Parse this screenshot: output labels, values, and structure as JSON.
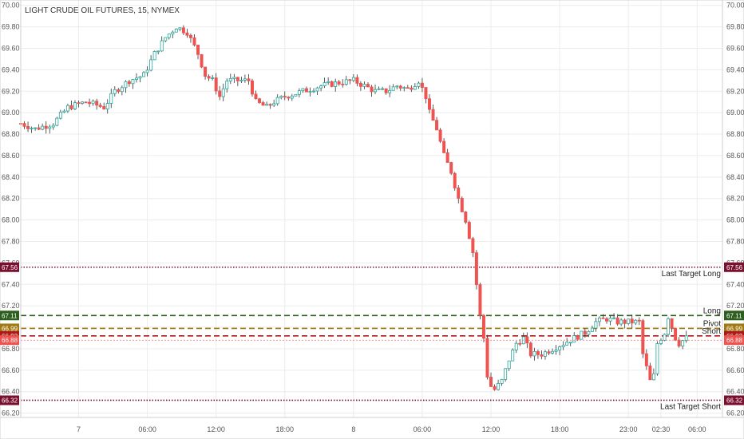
{
  "chart_data": {
    "type": "candlestick",
    "title": "LIGHT CRUDE OIL FUTURES, 15, NYMEX",
    "ylim": [
      66.16,
      70.02
    ],
    "y_ticks": [
      "66.20",
      "66.40",
      "66.60",
      "66.80",
      "67.00",
      "67.20",
      "67.40",
      "67.60",
      "67.80",
      "68.00",
      "68.20",
      "68.40",
      "68.60",
      "68.80",
      "69.00",
      "69.20",
      "69.40",
      "69.60",
      "69.80",
      "70.00"
    ],
    "x_range": [
      0,
      194
    ],
    "x_ticks": [
      {
        "x": 16,
        "label": "7"
      },
      {
        "x": 35,
        "label": "06:00"
      },
      {
        "x": 54,
        "label": "12:00"
      },
      {
        "x": 73,
        "label": "18:00"
      },
      {
        "x": 92,
        "label": "8"
      },
      {
        "x": 111,
        "label": "06:00"
      },
      {
        "x": 130,
        "label": "12:00"
      },
      {
        "x": 149,
        "label": "18:00"
      },
      {
        "x": 168,
        "label": "23:00"
      },
      {
        "x": 177,
        "label": "02:30"
      },
      {
        "x": 187,
        "label": "06:00"
      }
    ],
    "grid": true,
    "up_color": "#26a69a",
    "down_color": "#ef5350",
    "close_path": [
      [
        0,
        68.9
      ],
      [
        4,
        68.85
      ],
      [
        9,
        68.9
      ],
      [
        13,
        69.05
      ],
      [
        18,
        69.1
      ],
      [
        23,
        69.05
      ],
      [
        26,
        69.2
      ],
      [
        30,
        69.3
      ],
      [
        34,
        69.35
      ],
      [
        37,
        69.55
      ],
      [
        40,
        69.7
      ],
      [
        43,
        69.8
      ],
      [
        46,
        69.75
      ],
      [
        49,
        69.55
      ],
      [
        51,
        69.35
      ],
      [
        53,
        69.3
      ],
      [
        55,
        69.15
      ],
      [
        57,
        69.3
      ],
      [
        60,
        69.3
      ],
      [
        63,
        69.3
      ],
      [
        65,
        69.1
      ],
      [
        68,
        69.05
      ],
      [
        70,
        69.1
      ],
      [
        73,
        69.15
      ],
      [
        78,
        69.2
      ],
      [
        83,
        69.25
      ],
      [
        88,
        69.28
      ],
      [
        92,
        69.3
      ],
      [
        95,
        69.25
      ],
      [
        98,
        69.2
      ],
      [
        101,
        69.2
      ],
      [
        104,
        69.25
      ],
      [
        107,
        69.22
      ],
      [
        110,
        69.3
      ],
      [
        112,
        69.15
      ],
      [
        113,
        69.0
      ],
      [
        115,
        68.85
      ],
      [
        117,
        68.6
      ],
      [
        119,
        68.45
      ],
      [
        121,
        68.2
      ],
      [
        123,
        68.0
      ],
      [
        125,
        67.7
      ],
      [
        126,
        67.4
      ],
      [
        127,
        67.1
      ],
      [
        128,
        66.9
      ],
      [
        129,
        66.55
      ],
      [
        130,
        66.45
      ],
      [
        131,
        66.42
      ],
      [
        133,
        66.5
      ],
      [
        135,
        66.7
      ],
      [
        137,
        66.85
      ],
      [
        139,
        66.9
      ],
      [
        141,
        66.75
      ],
      [
        144,
        66.75
      ],
      [
        147,
        66.8
      ],
      [
        150,
        66.85
      ],
      [
        153,
        66.9
      ],
      [
        156,
        66.95
      ],
      [
        159,
        67.05
      ],
      [
        162,
        67.08
      ],
      [
        165,
        67.05
      ],
      [
        168,
        67.05
      ],
      [
        171,
        67.05
      ],
      [
        172,
        66.75
      ],
      [
        174,
        66.5
      ],
      [
        175,
        66.55
      ],
      [
        176,
        66.85
      ],
      [
        178,
        66.95
      ],
      [
        179,
        67.1
      ],
      [
        180,
        67.0
      ],
      [
        181,
        66.9
      ],
      [
        182,
        66.85
      ],
      [
        184,
        66.9
      ]
    ],
    "levels": [
      {
        "name": "Last Target Long",
        "label": "Last Target Long",
        "value": "67.56",
        "color": "#7a1030",
        "style": "dotted"
      },
      {
        "name": "Long",
        "label": "Long",
        "value": "67.11",
        "color": "#2e5e1e",
        "style": "dashed"
      },
      {
        "name": "Pivot",
        "label": "Pivot",
        "value": "66.99",
        "color": "#a07a10",
        "style": "dashed"
      },
      {
        "name": "Short",
        "label": "Short",
        "value": "66.92",
        "color": "#b01818",
        "style": "dashed"
      },
      {
        "name": "Last Target Short",
        "label": "Last Target Short",
        "value": "66.32",
        "color": "#7a1030",
        "style": "dotted"
      }
    ],
    "last_price": {
      "value": "66.88",
      "color": "#ef5350"
    }
  }
}
